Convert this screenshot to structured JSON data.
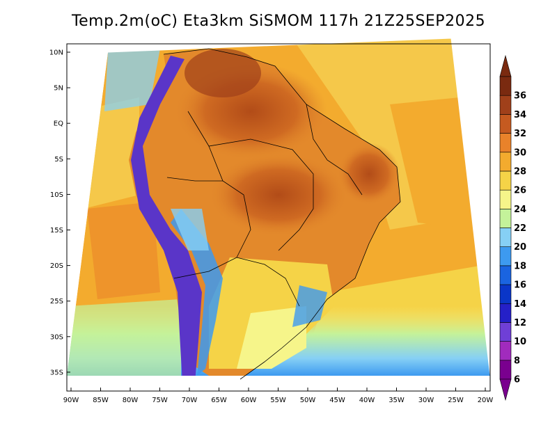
{
  "title": "Temp.2m(oC) Eta3km SiSMOM 117h 21Z25SEP2025",
  "y_axis_labels": [
    "10N",
    "5N",
    "EQ",
    "5S",
    "10S",
    "15S",
    "20S",
    "25S",
    "30S",
    "35S"
  ],
  "x_axis_labels": [
    "90W",
    "85W",
    "80W",
    "75W",
    "70W",
    "65W",
    "60W",
    "55W",
    "50W",
    "45W",
    "40W",
    "35W",
    "30W",
    "25W",
    "20W"
  ],
  "colorbar": {
    "labels": [
      "6",
      "8",
      "10",
      "12",
      "14",
      "16",
      "18",
      "20",
      "22",
      "24",
      "26",
      "28",
      "30",
      "32",
      "34",
      "36"
    ],
    "colors": [
      "#7a008f",
      "#a12bbd",
      "#6f3fd6",
      "#2520c8",
      "#0a36c8",
      "#1a64e0",
      "#3d9af0",
      "#86d0f5",
      "#c4f29a",
      "#f6f58a",
      "#f5d347",
      "#f3ab2e",
      "#e9822a",
      "#c55a20",
      "#a0401a",
      "#7a2a10"
    ]
  },
  "palette": {
    "ocean_warm": "#f2a838",
    "ocean_mild": "#f5c84a",
    "ocean_cool": "#f6ec7e",
    "land_hot": "#c4641f",
    "land_warm": "#e3892b",
    "andes_cold": "#5a35c8",
    "south_cold": "#6bb7ee"
  }
}
